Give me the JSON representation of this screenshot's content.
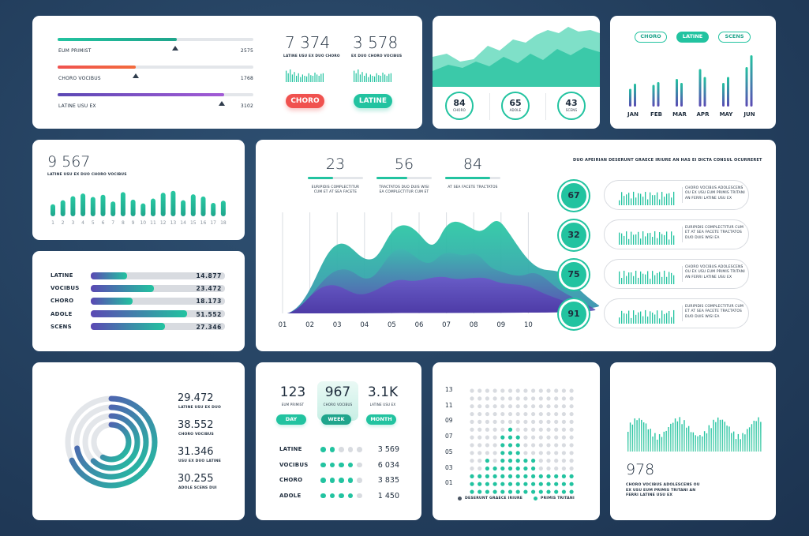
{
  "colors": {
    "teal": "#22c3a0",
    "purple": "#5b48b4",
    "red": "#f0524f",
    "gray": "#d8dbe0",
    "dark": "#1f2d3d"
  },
  "progress_card": {
    "items": [
      {
        "label": "EUM PRIMIST",
        "value": "2575",
        "fill": 0.61,
        "marker": 0.6,
        "c1": "#22c3a0",
        "c2": "#1fa58c"
      },
      {
        "label": "CHORO VOCIBUS",
        "value": "1768",
        "fill": 0.4,
        "marker": 0.4,
        "c1": "#f0524f",
        "c2": "#f26b3d"
      },
      {
        "label": "LATINE USU EX",
        "value": "3102",
        "fill": 0.85,
        "marker": 0.84,
        "c1": "#5b48b4",
        "c2": "#a35bd6"
      }
    ],
    "stats": [
      {
        "number": "7 374",
        "caption": "LATINE USU EX DUO CHORO",
        "button": "CHORO",
        "button_color": "#f0524f"
      },
      {
        "number": "3 578",
        "caption": "EX DUO CHORO VOCIBUS",
        "button": "LATINE",
        "button_color": "#22c3a0"
      }
    ]
  },
  "area_card": {
    "circles": [
      {
        "value": "84",
        "label": "CHORO"
      },
      {
        "value": "65",
        "label": "ADOLE"
      },
      {
        "value": "43",
        "label": "SCENS"
      }
    ]
  },
  "months_card": {
    "tabs": [
      "CHORO",
      "LATINE",
      "SCENS"
    ],
    "active_tab": 1,
    "months": [
      "JAN",
      "FEB",
      "MAR",
      "APR",
      "MAY",
      "JUN"
    ]
  },
  "count_card": {
    "number": "9 567",
    "caption": "LATINE USU EX DUO CHORO VOCIBUS",
    "values": [
      0.45,
      0.6,
      0.75,
      0.85,
      0.72,
      0.8,
      0.55,
      0.9,
      0.62,
      0.48,
      0.66,
      0.88,
      0.95,
      0.6,
      0.82,
      0.74,
      0.5,
      0.58
    ],
    "labels": [
      "1",
      "2",
      "3",
      "4",
      "5",
      "6",
      "7",
      "8",
      "9",
      "10",
      "11",
      "12",
      "13",
      "14",
      "15",
      "16",
      "17",
      "18"
    ]
  },
  "hbar_card": {
    "rows": [
      {
        "label": "LATINE",
        "value": "14.877",
        "fill": 0.27
      },
      {
        "label": "VOCIBUS",
        "value": "23.472",
        "fill": 0.47
      },
      {
        "label": "CHORO",
        "value": "18.173",
        "fill": 0.31
      },
      {
        "label": "ADOLE",
        "value": "51.552",
        "fill": 0.72
      },
      {
        "label": "SCENS",
        "value": "27.346",
        "fill": 0.55
      }
    ]
  },
  "main_card": {
    "stats": [
      {
        "number": "23",
        "caption": "EURIPIDIS COMPLECTITUR CUM ET AT SEA FACETE",
        "fill": 0.45
      },
      {
        "number": "56",
        "caption": "TRACTATOS DUO DUIS WISI EA COMPLECTITUR CUM ET",
        "fill": 0.55
      },
      {
        "number": "84",
        "caption": "AT SEA FACETE TRACTATOS",
        "fill": 0.82
      }
    ],
    "x_labels": [
      "01",
      "02",
      "03",
      "04",
      "05",
      "06",
      "07",
      "08",
      "09",
      "10"
    ],
    "right_title": "DUO APEIRIAN DESERUNT GRAECE IRIURE AN HAS EI DICTA CONSUL OCURRERET",
    "rows": [
      {
        "value": "67",
        "text": "CHORO VOCIBUS ADOLESCENS OU EX USU EUM PRIMIS TRITANI AN FERRI LATINE USU EX"
      },
      {
        "value": "32",
        "text": "EURIPIDIS COMPLECTITUR CUM ET AT SEA FACETE TRACTATOS DUO DUIS WISI EA"
      },
      {
        "value": "75",
        "text": "CHORO VOCIBUS ADOLESCENS OU EX USU EUM PRIMIS TRITANI AN FERRI LATINE USU EX"
      },
      {
        "value": "91",
        "text": "EURIPIDIS COMPLECTITUR CUM ET AT SEA FACETE TRACTATOS DUO DUIS WISI EA"
      }
    ]
  },
  "donut_card": {
    "items": [
      {
        "value": "29.472",
        "label": "LATINE USU EX DUO"
      },
      {
        "value": "38.552",
        "label": "CHORO VOCIBUS"
      },
      {
        "value": "31.346",
        "label": "USU EX DUO LATINE"
      },
      {
        "value": "30.255",
        "label": "ADOLE SCENS DUI"
      }
    ],
    "fractions": [
      0.68,
      0.72,
      0.62,
      0.58
    ]
  },
  "period_card": {
    "stats": [
      {
        "number": "123",
        "caption": "EUM PRIMIST",
        "button": "DAY"
      },
      {
        "number": "967",
        "caption": "CHORO VOCIBUS",
        "button": "WEEK"
      },
      {
        "number": "3.1K",
        "caption": "LATINE USU EX",
        "button": "MONTH"
      }
    ],
    "active": 1,
    "rows": [
      {
        "label": "LATINE",
        "value": "3 569",
        "filled": 2
      },
      {
        "label": "VOCIBUS",
        "value": "6 034",
        "filled": 4
      },
      {
        "label": "CHORO",
        "value": "3 835",
        "filled": 4
      },
      {
        "label": "ADOLE",
        "value": "1 450",
        "filled": 4
      }
    ]
  },
  "dot_card": {
    "y_labels": [
      "13",
      "11",
      "09",
      "07",
      "05",
      "03",
      "01"
    ],
    "legend": [
      "DESERUNT GRAECE IRIURE",
      "PRIMIS TRITANI"
    ]
  },
  "wave_card": {
    "number": "978",
    "caption": "CHORO VOCIBUS ADOLESCENS OU EX USU EUM PRIMIS TRITANI AN FERRI LATINE USU EX"
  }
}
